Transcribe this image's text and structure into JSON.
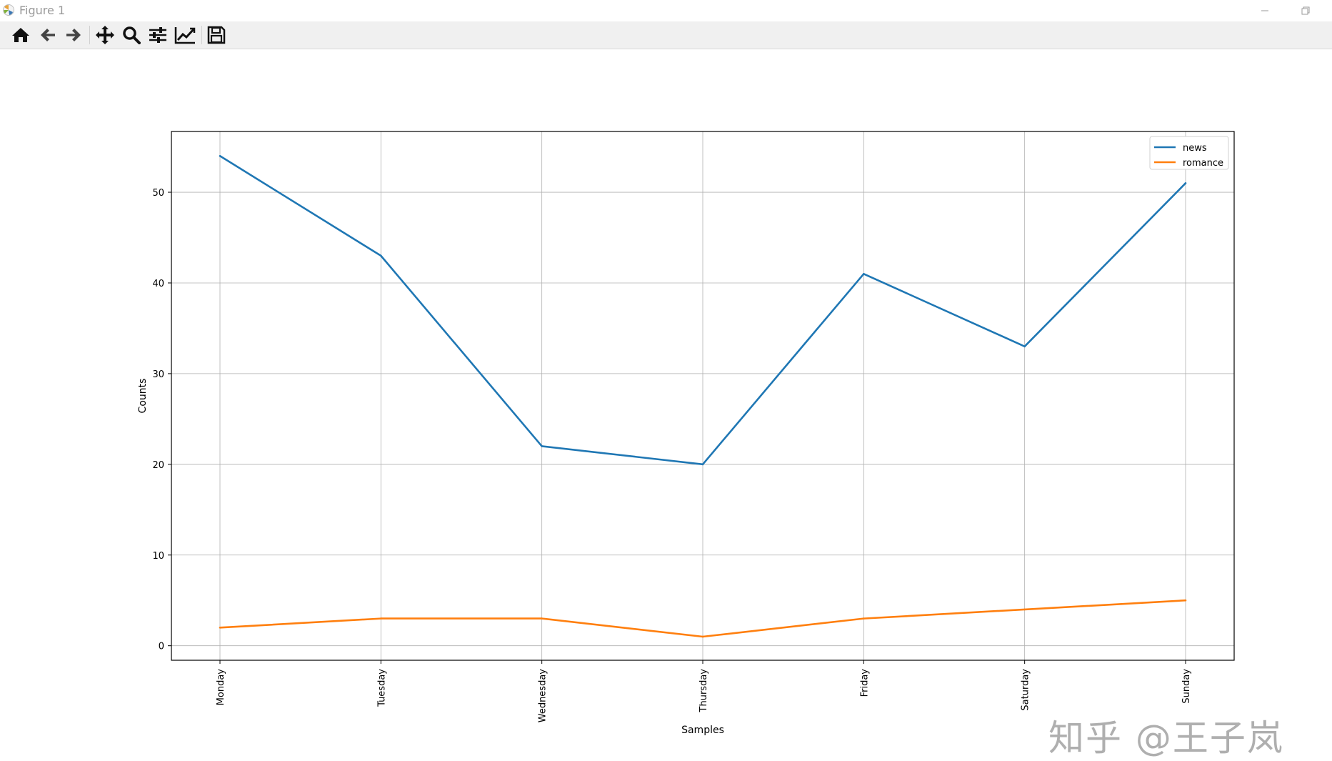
{
  "window": {
    "title": "Figure 1"
  },
  "toolbar": {
    "buttons": [
      {
        "name": "home-button",
        "icon": "home-icon",
        "tooltip": ""
      },
      {
        "name": "back-button",
        "icon": "arrow-left-icon"
      },
      {
        "name": "forward-button",
        "icon": "arrow-right-icon"
      },
      {
        "name": "pan-button",
        "icon": "move-icon"
      },
      {
        "name": "zoom-button",
        "icon": "magnifier-icon"
      },
      {
        "name": "subplots-button",
        "icon": "sliders-icon"
      },
      {
        "name": "edit-axis-button",
        "icon": "line-chart-icon"
      },
      {
        "name": "save-button",
        "icon": "floppy-disk-icon"
      }
    ]
  },
  "chart_data": {
    "type": "line",
    "categories": [
      "Monday",
      "Tuesday",
      "Wednesday",
      "Thursday",
      "Friday",
      "Saturday",
      "Sunday"
    ],
    "series": [
      {
        "name": "news",
        "values": [
          54,
          43,
          22,
          20,
          41,
          33,
          51
        ],
        "color": "#1f77b4"
      },
      {
        "name": "romance",
        "values": [
          2,
          3,
          3,
          1,
          3,
          4,
          5
        ],
        "color": "#ff7f0e"
      }
    ],
    "title": "",
    "xlabel": "Samples",
    "ylabel": "Counts",
    "yticks": [
      0,
      10,
      20,
      30,
      40,
      50
    ],
    "ylim": [
      -1.6,
      56.7
    ],
    "grid": true,
    "legend": "top-right",
    "x_tick_rotation": "vertical"
  },
  "watermark": {
    "text": "知乎 @王子岚"
  }
}
